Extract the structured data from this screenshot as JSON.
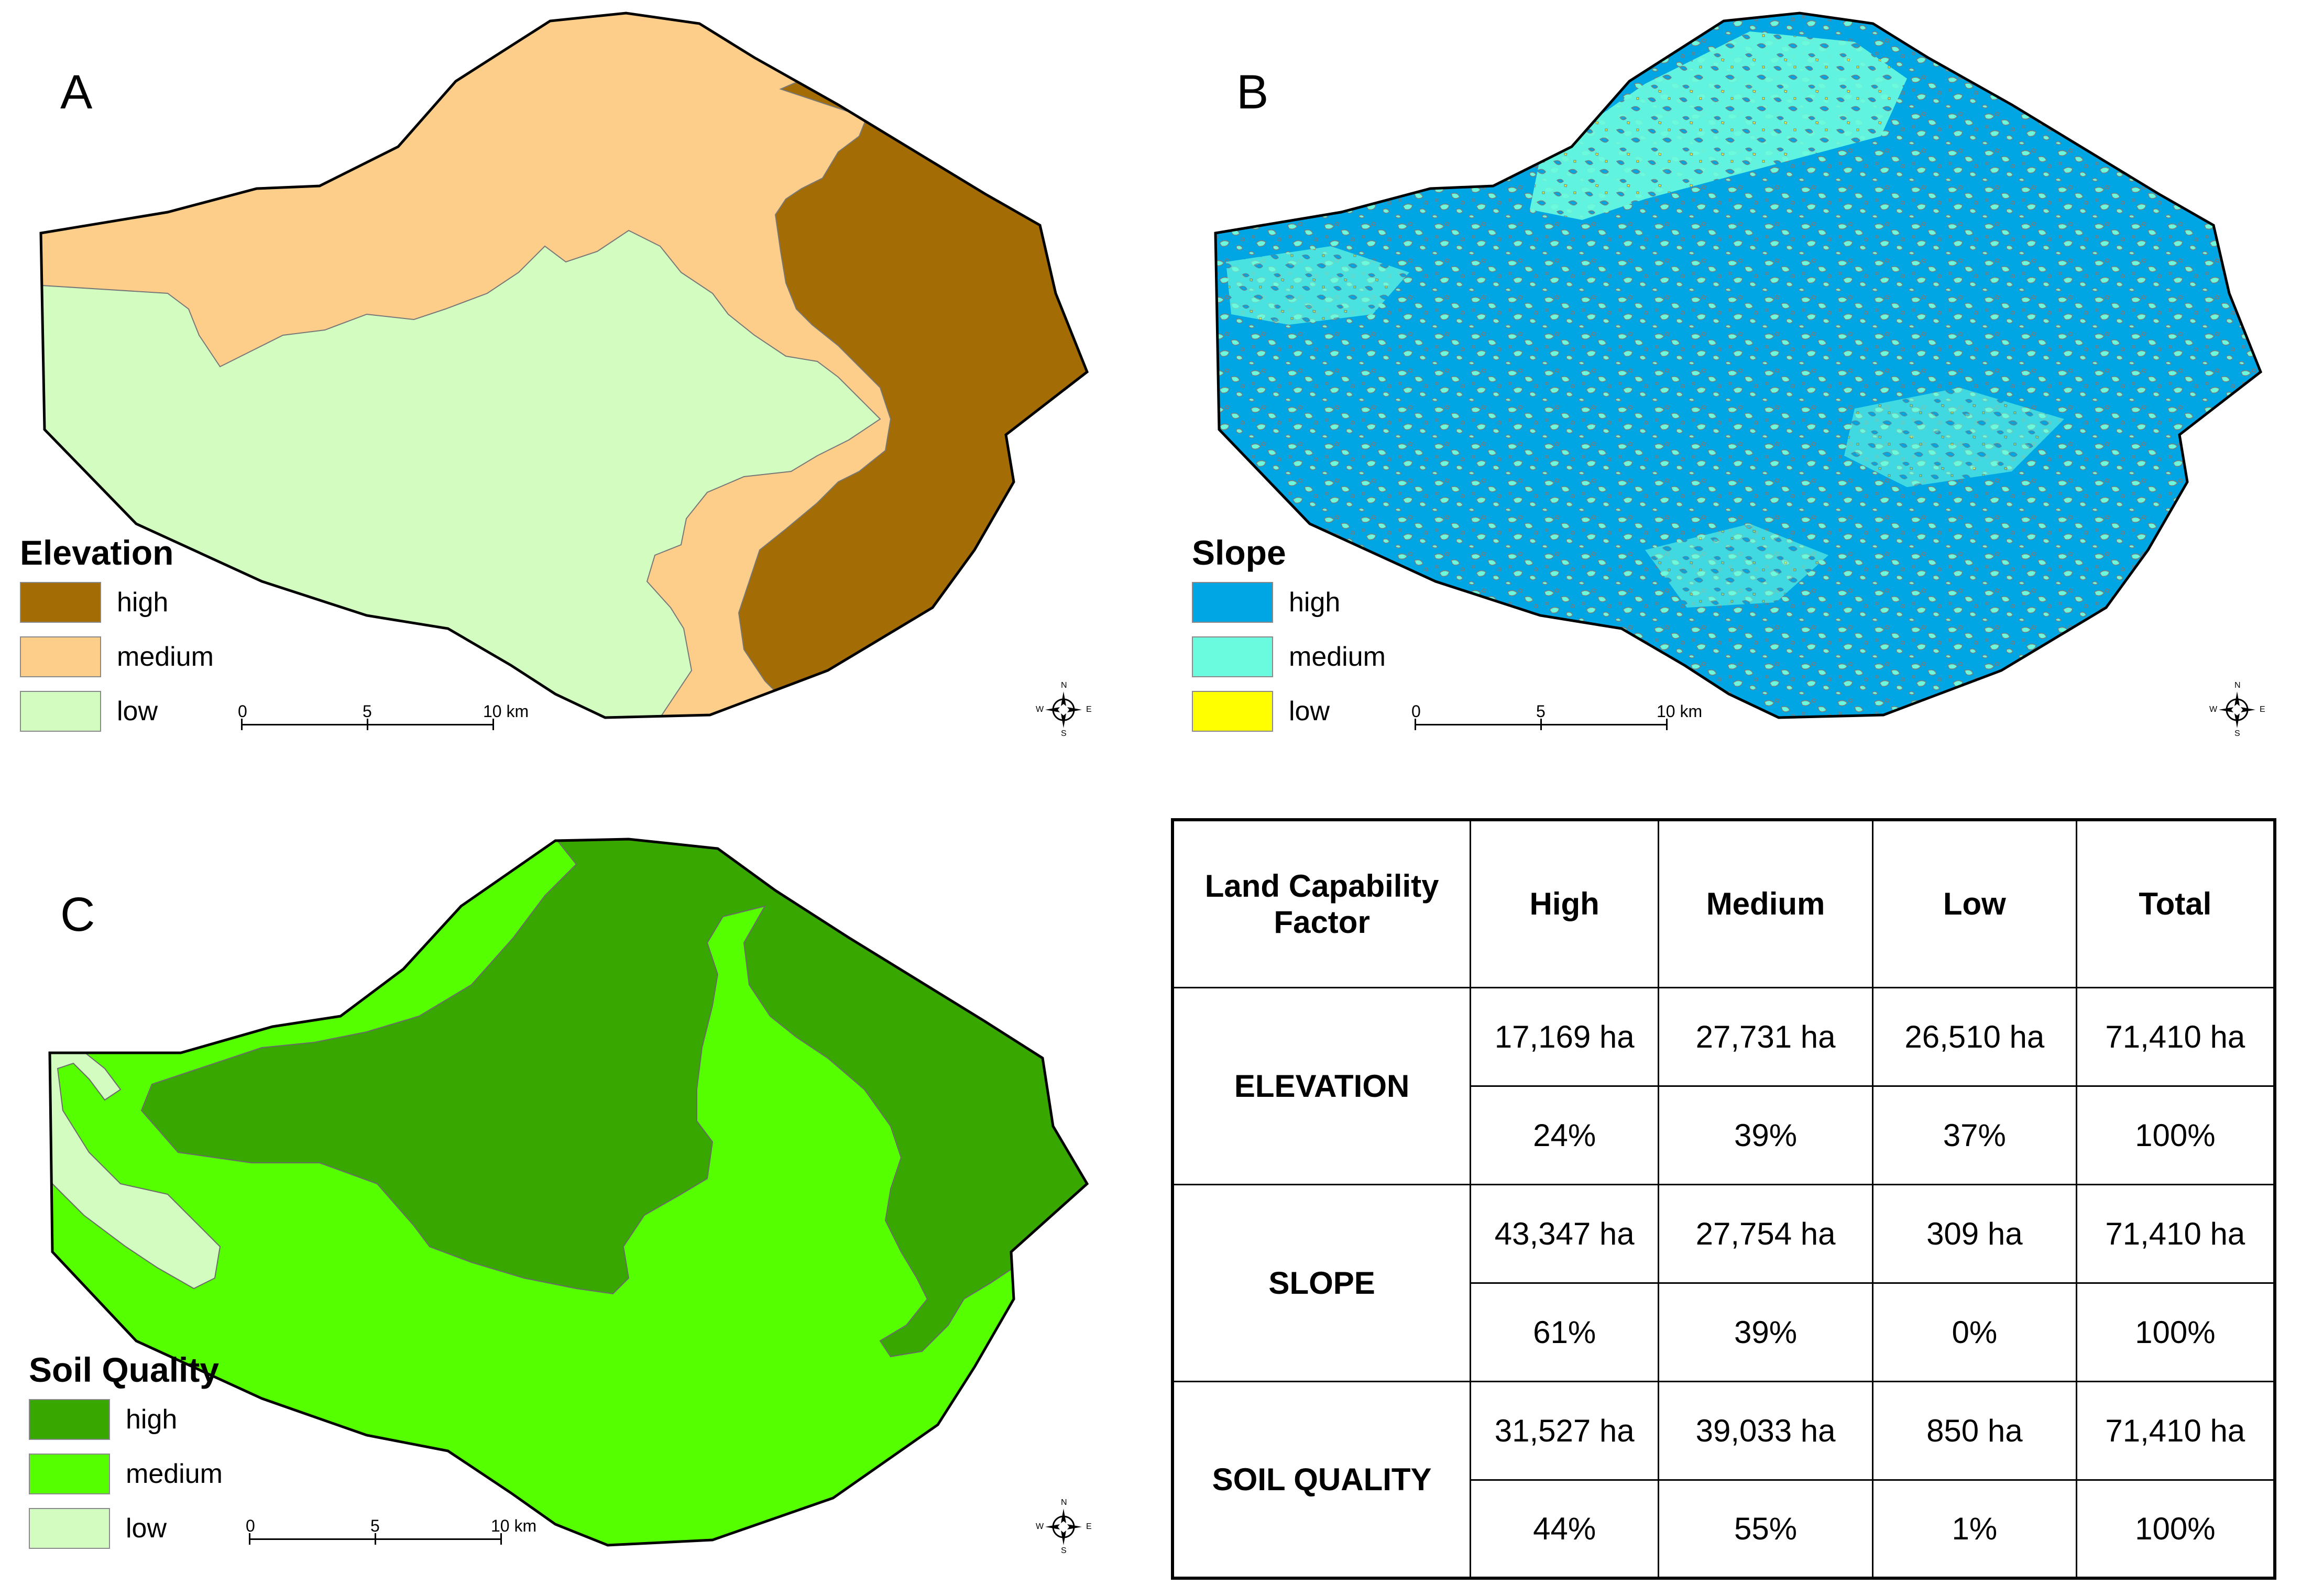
{
  "panels": {
    "a": {
      "letter": "A",
      "legend_title": "Elevation",
      "legend": [
        {
          "label": "high",
          "color": "#A36C05"
        },
        {
          "label": "medium",
          "color": "#FDCD8A"
        },
        {
          "label": "low",
          "color": "#D3FDC0"
        }
      ],
      "colors": {
        "high": "#A36C05",
        "medium": "#FDCD8A",
        "low": "#D3FDC0"
      }
    },
    "b": {
      "letter": "B",
      "legend_title": "Slope",
      "legend": [
        {
          "label": "high",
          "color": "#00A6E4"
        },
        {
          "label": "medium",
          "color": "#6AFBDF"
        },
        {
          "label": "low",
          "color": "#FFFF00"
        }
      ],
      "colors": {
        "high": "#00A6E4",
        "medium": "#6AFBDF",
        "low": "#FFFF00"
      }
    },
    "c": {
      "letter": "C",
      "legend_title": "Soil Quality",
      "legend": [
        {
          "label": "high",
          "color": "#38A800"
        },
        {
          "label": "medium",
          "color": "#55FF00"
        },
        {
          "label": "low",
          "color": "#D3FDC0"
        }
      ],
      "colors": {
        "high": "#38A800",
        "medium": "#55FF00",
        "low": "#D3FDC0"
      }
    }
  },
  "scalebar": {
    "labels": [
      "0",
      "5",
      "10 km"
    ]
  },
  "compass": {
    "n": "N",
    "s": "S",
    "e": "E",
    "w": "W"
  },
  "table": {
    "headers": [
      "Land Capability Factor",
      "High",
      "Medium",
      "Low",
      "Total"
    ],
    "rows": [
      {
        "factor": "ELEVATION",
        "ha": [
          "17,169 ha",
          "27,731 ha",
          "26,510 ha",
          "71,410 ha"
        ],
        "pct": [
          "24%",
          "39%",
          "37%",
          "100%"
        ]
      },
      {
        "factor": "SLOPE",
        "ha": [
          "43,347 ha",
          "27,754 ha",
          "309 ha",
          "71,410 ha"
        ],
        "pct": [
          "61%",
          "39%",
          "0%",
          "100%"
        ]
      },
      {
        "factor": "SOIL QUALITY",
        "ha": [
          "31,527 ha",
          "39,033 ha",
          "850 ha",
          "71,410 ha"
        ],
        "pct": [
          "44%",
          "55%",
          "1%",
          "100%"
        ]
      }
    ]
  }
}
